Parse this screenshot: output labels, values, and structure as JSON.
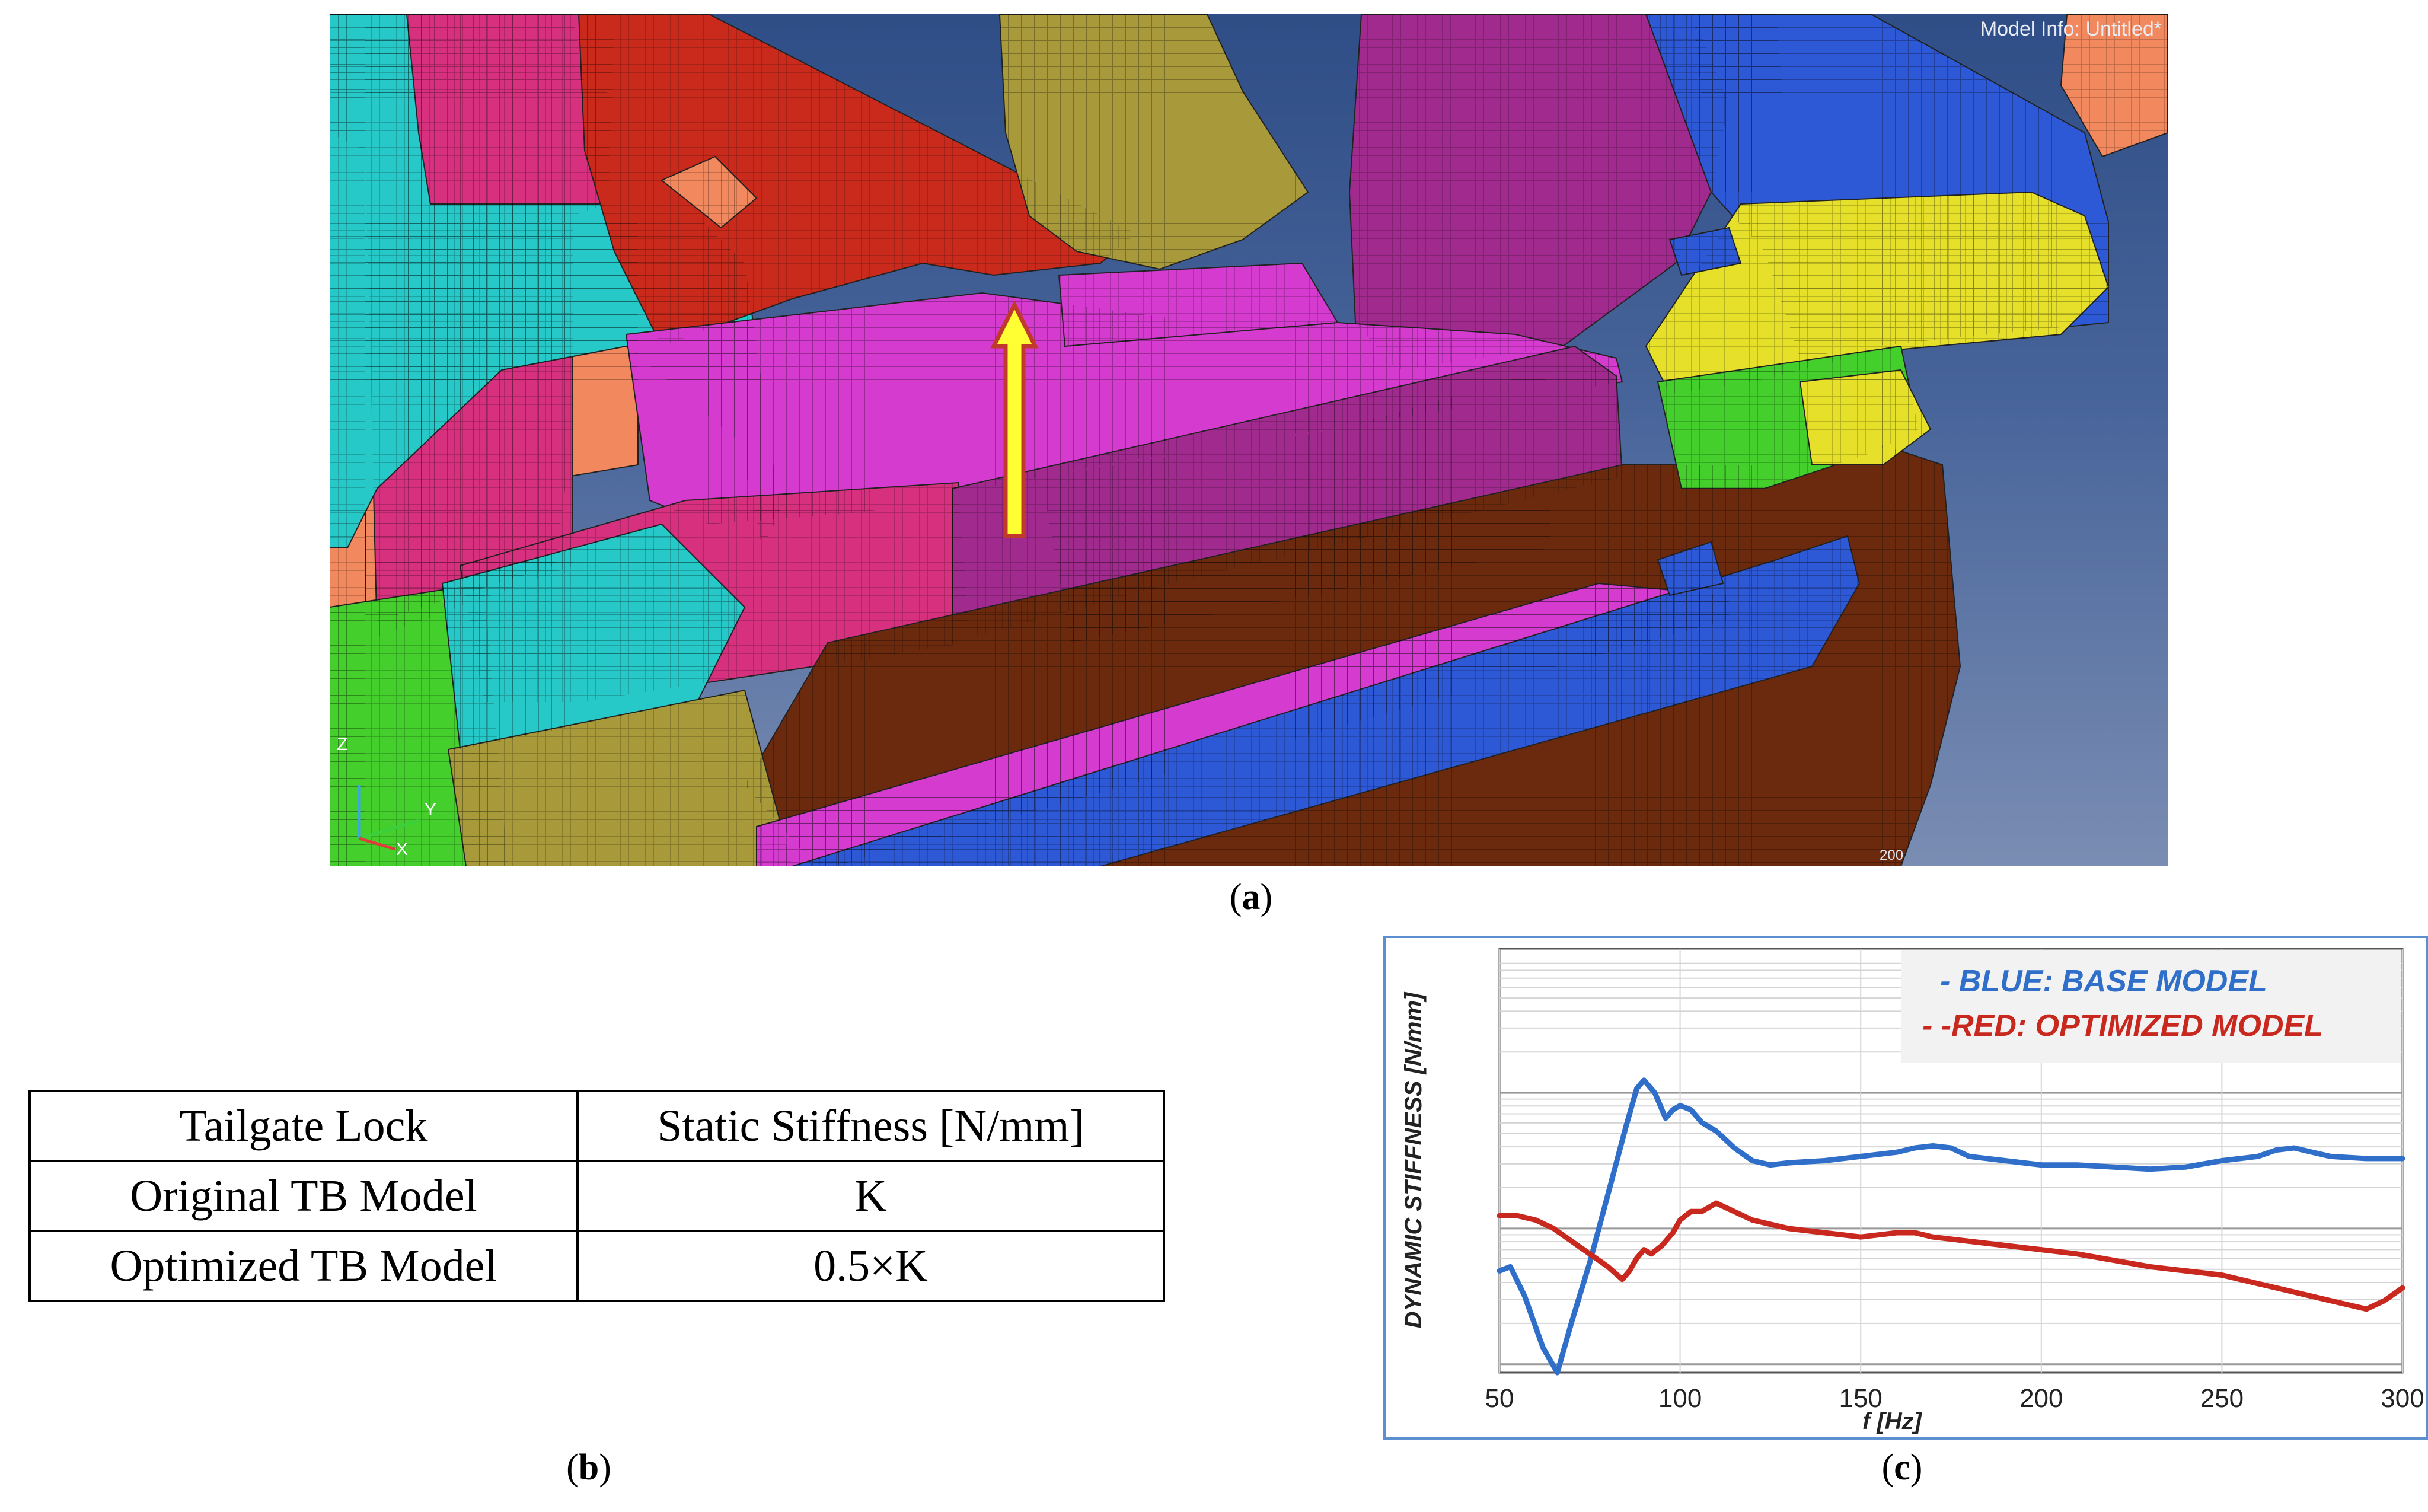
{
  "panel_a": {
    "model_info": "Model Info: Untitled*",
    "scale_label": "200",
    "axis_labels": {
      "z": "Z",
      "y": "Y",
      "x": "X"
    },
    "caption": "a",
    "colors": {
      "magenta": "#d63bd0",
      "pink": "#d6307e",
      "salmon": "#f2885e",
      "cyan": "#27c8c8",
      "olive": "#a89a3a",
      "brown": "#6b2a0e",
      "blue": "#2e59d6",
      "yellow": "#e6e02a",
      "green": "#44cf2c",
      "red": "#c92a1c",
      "purple": "#a02a8e",
      "teal": "#2f8d80",
      "arrow_fill": "#ffff33",
      "arrow_stroke": "#c0392b"
    }
  },
  "panel_b": {
    "caption": "b",
    "headers": [
      "Tailgate Lock",
      "Static Stiffness [N/mm]"
    ],
    "rows": [
      [
        "Original TB Model",
        "K"
      ],
      [
        "Optimized TB Model",
        "0.5×K"
      ]
    ]
  },
  "panel_c": {
    "caption": "c",
    "chart_data": {
      "type": "line",
      "title": "",
      "xlabel": "f [Hz]",
      "ylabel": "DYNAMIC STIFFNESS [N/mm]",
      "xlim": [
        50,
        300
      ],
      "xticks": [
        50,
        100,
        150,
        200,
        250,
        300
      ],
      "y_tick_labels": "none",
      "y_scale": "log",
      "grid": true,
      "legend_position": "top-right",
      "series": [
        {
          "name": "BLUE: BASE MODEL",
          "legend_label": "-   BLUE: BASE MODEL",
          "color": "#2f6fc9",
          "x": [
            50,
            53,
            57,
            62,
            66,
            70,
            75,
            80,
            85,
            88,
            90,
            93,
            96,
            98,
            100,
            103,
            106,
            110,
            115,
            120,
            125,
            130,
            140,
            150,
            160,
            165,
            170,
            175,
            180,
            190,
            200,
            210,
            220,
            230,
            240,
            250,
            260,
            265,
            270,
            275,
            280,
            290,
            300
          ],
          "y": [
            0.24,
            0.25,
            0.18,
            0.06,
            0.0,
            0.12,
            0.26,
            0.42,
            0.58,
            0.67,
            0.69,
            0.66,
            0.6,
            0.62,
            0.63,
            0.62,
            0.59,
            0.57,
            0.53,
            0.5,
            0.49,
            0.495,
            0.5,
            0.51,
            0.52,
            0.53,
            0.535,
            0.53,
            0.51,
            0.5,
            0.49,
            0.49,
            0.485,
            0.48,
            0.485,
            0.5,
            0.51,
            0.525,
            0.53,
            0.52,
            0.51,
            0.505,
            0.505
          ]
        },
        {
          "name": "RED: OPTIMIZED MODEL",
          "legend_label": "-   -RED: OPTIMIZED MODEL",
          "color": "#c8281e",
          "x": [
            50,
            55,
            60,
            65,
            70,
            75,
            80,
            84,
            86,
            88,
            90,
            92,
            95,
            98,
            100,
            103,
            106,
            110,
            115,
            120,
            130,
            140,
            150,
            160,
            165,
            170,
            180,
            190,
            200,
            210,
            220,
            230,
            240,
            250,
            260,
            270,
            280,
            285,
            290,
            295,
            300
          ],
          "y": [
            0.37,
            0.37,
            0.36,
            0.34,
            0.31,
            0.28,
            0.25,
            0.22,
            0.24,
            0.27,
            0.29,
            0.28,
            0.3,
            0.33,
            0.36,
            0.38,
            0.38,
            0.4,
            0.38,
            0.36,
            0.34,
            0.33,
            0.32,
            0.33,
            0.33,
            0.32,
            0.31,
            0.3,
            0.29,
            0.28,
            0.265,
            0.25,
            0.24,
            0.23,
            0.21,
            0.19,
            0.17,
            0.16,
            0.15,
            0.17,
            0.2
          ]
        }
      ]
    }
  }
}
